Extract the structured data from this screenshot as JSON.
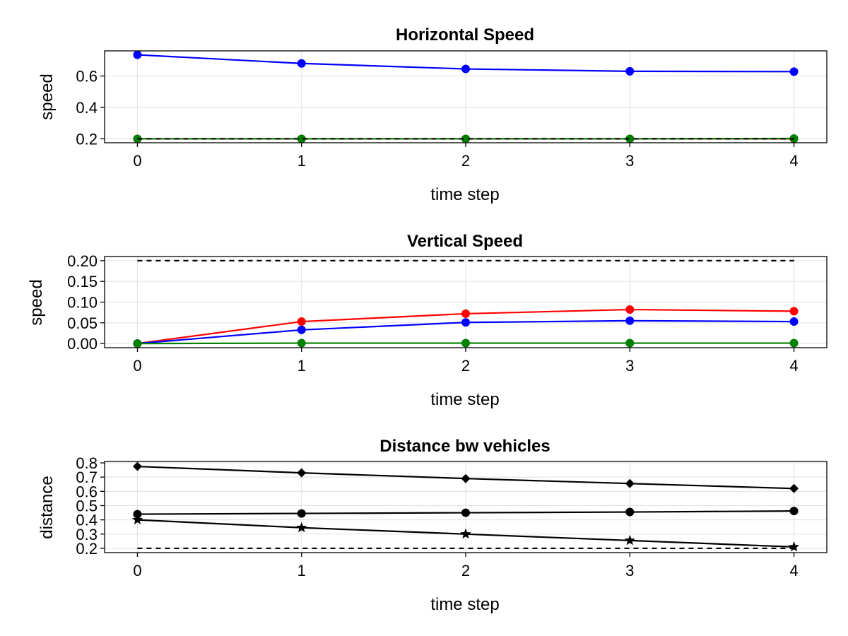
{
  "chart_data": [
    {
      "type": "line",
      "title": "Horizontal Speed",
      "xlabel": "time step",
      "ylabel": "speed",
      "x": [
        0,
        1,
        2,
        3,
        4
      ],
      "xlim": [
        -0.2,
        4.2
      ],
      "ylim": [
        0.175,
        0.76
      ],
      "yticks": [
        0.2,
        0.4,
        0.6
      ],
      "ytick_labels": [
        "0.2",
        "0.4",
        "0.6"
      ],
      "xticks": [
        0,
        1,
        2,
        3,
        4
      ],
      "xtick_labels": [
        "0",
        "1",
        "2",
        "3",
        "4"
      ],
      "grid": true,
      "series": [
        {
          "color": "#0000ff",
          "marker": "circle",
          "values": [
            0.735,
            0.68,
            0.645,
            0.63,
            0.628
          ]
        },
        {
          "color": "#ff0000",
          "marker": "circle",
          "values": [
            0.2,
            0.2,
            0.2,
            0.2,
            0.2
          ]
        },
        {
          "color": "#008000",
          "marker": "circle",
          "values": [
            0.2,
            0.2,
            0.2,
            0.2,
            0.202
          ]
        },
        {
          "color": "#000000",
          "dashed": true,
          "marker": "none",
          "values": [
            0.2,
            0.2,
            0.2,
            0.2,
            0.2
          ]
        }
      ]
    },
    {
      "type": "line",
      "title": "Vertical Speed",
      "xlabel": "time step",
      "ylabel": "speed",
      "x": [
        0,
        1,
        2,
        3,
        4
      ],
      "xlim": [
        -0.2,
        4.2
      ],
      "ylim": [
        -0.01,
        0.21
      ],
      "yticks": [
        0.0,
        0.05,
        0.1,
        0.15,
        0.2
      ],
      "ytick_labels": [
        "0.00",
        "0.05",
        "0.10",
        "0.15",
        "0.20"
      ],
      "xticks": [
        0,
        1,
        2,
        3,
        4
      ],
      "xtick_labels": [
        "0",
        "1",
        "2",
        "3",
        "4"
      ],
      "grid": true,
      "series": [
        {
          "color": "#ff0000",
          "marker": "circle",
          "values": [
            0.0,
            0.053,
            0.072,
            0.082,
            0.078
          ]
        },
        {
          "color": "#0000ff",
          "marker": "circle",
          "values": [
            0.0,
            0.033,
            0.051,
            0.055,
            0.053
          ]
        },
        {
          "color": "#008000",
          "marker": "circle",
          "values": [
            0.0,
            0.001,
            0.001,
            0.001,
            0.001
          ]
        },
        {
          "color": "#000000",
          "dashed": true,
          "marker": "none",
          "values": [
            0.2,
            0.2,
            0.2,
            0.2,
            0.2
          ]
        }
      ]
    },
    {
      "type": "line",
      "title": "Distance bw vehicles",
      "xlabel": "time step",
      "ylabel": "distance",
      "x": [
        0,
        1,
        2,
        3,
        4
      ],
      "xlim": [
        -0.2,
        4.2
      ],
      "ylim": [
        0.17,
        0.81
      ],
      "yticks": [
        0.2,
        0.3,
        0.4,
        0.5,
        0.6,
        0.7,
        0.8
      ],
      "ytick_labels": [
        "0.2",
        "0.3",
        "0.4",
        "0.5",
        "0.6",
        "0.7",
        "0.8"
      ],
      "xticks": [
        0,
        1,
        2,
        3,
        4
      ],
      "xtick_labels": [
        "0",
        "1",
        "2",
        "3",
        "4"
      ],
      "grid": true,
      "series": [
        {
          "color": "#000000",
          "marker": "diamond",
          "values": [
            0.775,
            0.73,
            0.69,
            0.655,
            0.62
          ]
        },
        {
          "color": "#000000",
          "marker": "circle",
          "values": [
            0.44,
            0.445,
            0.45,
            0.455,
            0.462
          ]
        },
        {
          "color": "#000000",
          "marker": "star",
          "values": [
            0.4,
            0.345,
            0.3,
            0.255,
            0.21
          ]
        },
        {
          "color": "#000000",
          "dashed": true,
          "marker": "none",
          "values": [
            0.2,
            0.2,
            0.2,
            0.2,
            0.2
          ]
        }
      ]
    }
  ]
}
